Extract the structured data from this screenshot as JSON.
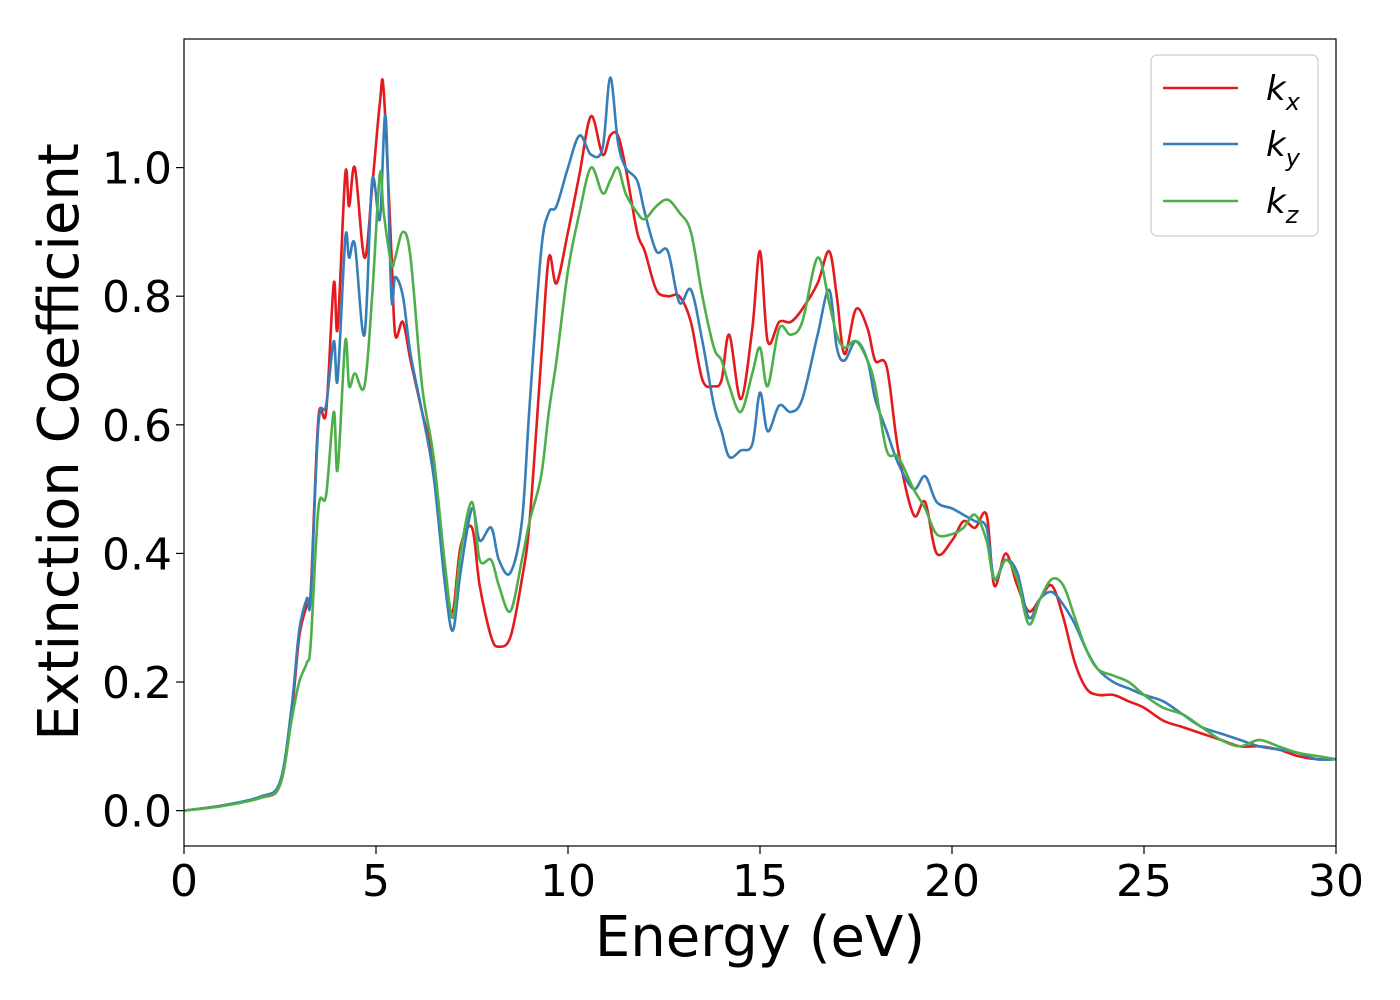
{
  "chart_data": {
    "type": "line",
    "title": "",
    "xlabel": "Energy (eV)",
    "ylabel": "Extinction Coefficient",
    "xlim": [
      0,
      30
    ],
    "ylim": [
      -0.055,
      1.2
    ],
    "xticks": [
      0,
      5,
      10,
      15,
      20,
      25,
      30
    ],
    "xtick_labels": [
      "0",
      "5",
      "10",
      "15",
      "20",
      "25",
      "30"
    ],
    "yticks": [
      0.0,
      0.2,
      0.4,
      0.6,
      0.8,
      1.0
    ],
    "ytick_labels": [
      "0.0",
      "0.2",
      "0.4",
      "0.6",
      "0.8",
      "1.0"
    ],
    "grid": false,
    "legend": "top-right",
    "series": [
      {
        "name": "k_x",
        "label_base": "k",
        "label_sub": "x",
        "color": "#e41a1c",
        "x": [
          0,
          1,
          2,
          2.5,
          2.8,
          3.0,
          3.2,
          3.3,
          3.5,
          3.7,
          3.9,
          4.0,
          4.2,
          4.3,
          4.45,
          4.7,
          4.9,
          5.1,
          5.2,
          5.4,
          5.5,
          5.7,
          5.9,
          6.2,
          6.5,
          6.8,
          7.0,
          7.2,
          7.5,
          7.7,
          8.0,
          8.2,
          8.5,
          8.8,
          9.0,
          9.3,
          9.5,
          9.7,
          10.0,
          10.3,
          10.6,
          10.9,
          11.1,
          11.3,
          11.5,
          11.8,
          12.0,
          12.3,
          12.6,
          12.9,
          13.2,
          13.5,
          13.8,
          14.0,
          14.2,
          14.5,
          14.8,
          15.0,
          15.2,
          15.5,
          15.8,
          16.1,
          16.5,
          16.8,
          17.0,
          17.2,
          17.5,
          17.8,
          18.0,
          18.3,
          18.6,
          19.0,
          19.3,
          19.6,
          20.0,
          20.3,
          20.6,
          20.9,
          21.1,
          21.4,
          21.7,
          22.0,
          22.3,
          22.6,
          22.9,
          23.2,
          23.5,
          23.8,
          24.2,
          24.6,
          25.0,
          25.5,
          26.0,
          26.5,
          27.0,
          27.5,
          28.0,
          28.5,
          29.0,
          29.5,
          30.0
        ],
        "y": [
          0.0,
          0.008,
          0.02,
          0.04,
          0.15,
          0.27,
          0.32,
          0.34,
          0.61,
          0.62,
          0.82,
          0.75,
          0.99,
          0.94,
          1.0,
          0.86,
          0.97,
          1.1,
          1.12,
          0.87,
          0.74,
          0.76,
          0.7,
          0.62,
          0.54,
          0.36,
          0.31,
          0.41,
          0.44,
          0.35,
          0.27,
          0.255,
          0.27,
          0.36,
          0.45,
          0.7,
          0.86,
          0.82,
          0.9,
          0.99,
          1.08,
          1.02,
          1.05,
          1.05,
          1.0,
          0.9,
          0.87,
          0.81,
          0.8,
          0.8,
          0.76,
          0.67,
          0.66,
          0.67,
          0.74,
          0.64,
          0.75,
          0.87,
          0.73,
          0.76,
          0.76,
          0.78,
          0.82,
          0.87,
          0.8,
          0.71,
          0.78,
          0.75,
          0.7,
          0.69,
          0.56,
          0.46,
          0.48,
          0.4,
          0.42,
          0.45,
          0.44,
          0.46,
          0.35,
          0.4,
          0.35,
          0.31,
          0.33,
          0.35,
          0.3,
          0.23,
          0.19,
          0.18,
          0.18,
          0.17,
          0.16,
          0.14,
          0.13,
          0.12,
          0.11,
          0.1,
          0.1,
          0.095,
          0.085,
          0.08,
          0.08
        ]
      },
      {
        "name": "k_y",
        "label_base": "k",
        "label_sub": "y",
        "color": "#377eb8",
        "x": [
          0,
          1,
          2,
          2.5,
          2.8,
          3.0,
          3.2,
          3.3,
          3.5,
          3.7,
          3.9,
          4.0,
          4.2,
          4.3,
          4.45,
          4.7,
          4.9,
          5.1,
          5.25,
          5.4,
          5.5,
          5.7,
          5.9,
          6.2,
          6.5,
          6.8,
          7.0,
          7.2,
          7.5,
          7.7,
          8.0,
          8.2,
          8.5,
          8.8,
          9.0,
          9.3,
          9.5,
          9.7,
          10.0,
          10.3,
          10.6,
          10.9,
          11.1,
          11.3,
          11.5,
          11.8,
          12.0,
          12.3,
          12.6,
          12.9,
          13.2,
          13.5,
          13.8,
          14.0,
          14.2,
          14.5,
          14.8,
          15.0,
          15.2,
          15.5,
          15.8,
          16.1,
          16.5,
          16.8,
          17.0,
          17.2,
          17.5,
          17.8,
          18.0,
          18.3,
          18.6,
          19.0,
          19.3,
          19.6,
          20.0,
          20.3,
          20.6,
          20.9,
          21.1,
          21.4,
          21.7,
          22.0,
          22.3,
          22.6,
          22.9,
          23.2,
          23.5,
          23.8,
          24.2,
          24.6,
          25.0,
          25.5,
          26.0,
          26.5,
          27.0,
          27.5,
          28.0,
          28.5,
          29.0,
          29.5,
          30.0
        ],
        "y": [
          0.0,
          0.008,
          0.022,
          0.045,
          0.16,
          0.28,
          0.33,
          0.33,
          0.6,
          0.63,
          0.73,
          0.67,
          0.89,
          0.86,
          0.88,
          0.74,
          0.98,
          0.92,
          1.08,
          0.8,
          0.83,
          0.8,
          0.71,
          0.62,
          0.52,
          0.35,
          0.28,
          0.37,
          0.47,
          0.42,
          0.44,
          0.39,
          0.37,
          0.45,
          0.63,
          0.87,
          0.93,
          0.94,
          1.0,
          1.05,
          1.02,
          1.03,
          1.14,
          1.04,
          1.0,
          0.98,
          0.93,
          0.87,
          0.87,
          0.79,
          0.81,
          0.73,
          0.63,
          0.59,
          0.55,
          0.56,
          0.57,
          0.65,
          0.59,
          0.63,
          0.62,
          0.64,
          0.74,
          0.81,
          0.72,
          0.7,
          0.73,
          0.7,
          0.64,
          0.59,
          0.54,
          0.5,
          0.52,
          0.48,
          0.47,
          0.46,
          0.45,
          0.44,
          0.36,
          0.39,
          0.37,
          0.3,
          0.33,
          0.34,
          0.32,
          0.29,
          0.25,
          0.22,
          0.2,
          0.19,
          0.18,
          0.17,
          0.15,
          0.13,
          0.12,
          0.11,
          0.1,
          0.095,
          0.09,
          0.08,
          0.08
        ]
      },
      {
        "name": "k_z",
        "label_base": "k",
        "label_sub": "z",
        "color": "#4daf4a",
        "x": [
          0,
          1,
          2,
          2.5,
          2.8,
          3.0,
          3.2,
          3.3,
          3.5,
          3.7,
          3.9,
          4.0,
          4.2,
          4.3,
          4.45,
          4.7,
          4.9,
          5.1,
          5.2,
          5.4,
          5.5,
          5.7,
          5.9,
          6.2,
          6.5,
          6.8,
          7.0,
          7.2,
          7.5,
          7.7,
          8.0,
          8.2,
          8.5,
          8.8,
          9.0,
          9.3,
          9.5,
          9.7,
          10.0,
          10.3,
          10.6,
          10.9,
          11.1,
          11.3,
          11.5,
          11.8,
          12.0,
          12.3,
          12.6,
          12.9,
          13.2,
          13.5,
          13.8,
          14.0,
          14.2,
          14.5,
          14.8,
          15.0,
          15.2,
          15.5,
          15.8,
          16.1,
          16.5,
          16.8,
          17.0,
          17.2,
          17.5,
          17.8,
          18.0,
          18.3,
          18.6,
          19.0,
          19.3,
          19.6,
          20.0,
          20.3,
          20.6,
          20.9,
          21.1,
          21.4,
          21.7,
          22.0,
          22.3,
          22.6,
          22.9,
          23.2,
          23.5,
          23.8,
          24.2,
          24.6,
          25.0,
          25.5,
          26.0,
          26.5,
          27.0,
          27.5,
          28.0,
          28.5,
          29.0,
          29.5,
          30.0
        ],
        "y": [
          0.0,
          0.007,
          0.02,
          0.04,
          0.14,
          0.2,
          0.23,
          0.26,
          0.47,
          0.49,
          0.62,
          0.53,
          0.73,
          0.66,
          0.68,
          0.66,
          0.8,
          0.99,
          0.93,
          0.85,
          0.86,
          0.9,
          0.86,
          0.66,
          0.55,
          0.38,
          0.3,
          0.4,
          0.48,
          0.39,
          0.39,
          0.35,
          0.31,
          0.39,
          0.45,
          0.52,
          0.62,
          0.7,
          0.84,
          0.93,
          1.0,
          0.96,
          0.98,
          1.0,
          0.96,
          0.93,
          0.92,
          0.94,
          0.95,
          0.93,
          0.9,
          0.8,
          0.72,
          0.7,
          0.66,
          0.62,
          0.68,
          0.72,
          0.66,
          0.75,
          0.74,
          0.76,
          0.86,
          0.79,
          0.74,
          0.72,
          0.73,
          0.7,
          0.66,
          0.56,
          0.55,
          0.5,
          0.47,
          0.43,
          0.43,
          0.44,
          0.46,
          0.42,
          0.36,
          0.39,
          0.36,
          0.29,
          0.33,
          0.36,
          0.35,
          0.3,
          0.25,
          0.22,
          0.21,
          0.2,
          0.18,
          0.16,
          0.15,
          0.13,
          0.11,
          0.1,
          0.11,
          0.1,
          0.09,
          0.085,
          0.08
        ]
      }
    ]
  }
}
